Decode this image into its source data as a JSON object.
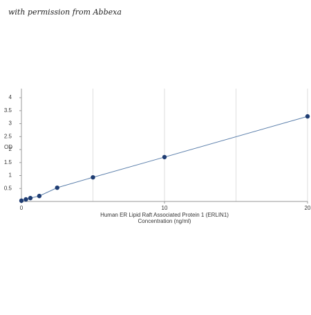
{
  "watermark": "with permission from Abbexa",
  "chart_data": {
    "type": "scatter",
    "xlabel": [
      "Human ER Lipid Raft Associated Protein 1 (ERLIN1)",
      "Concentration (ng/ml)"
    ],
    "ylabel": "OD",
    "x": [
      0,
      0.313,
      0.625,
      1.25,
      2.5,
      5,
      10,
      20
    ],
    "series": [
      {
        "color": "#1f3d73",
        "line_color": "#5b7fab",
        "values": [
          0.03,
          0.08,
          0.13,
          0.21,
          0.53,
          0.93,
          1.71,
          3.28
        ]
      }
    ],
    "xlim": [
      0,
      20
    ],
    "ylim": [
      0,
      4.35
    ],
    "xticks": [
      0,
      10,
      20
    ],
    "yticks": [
      0.5,
      1,
      1.5,
      2,
      2.5,
      3,
      3.5,
      4
    ],
    "xgrid": [
      5,
      10,
      15,
      20
    ],
    "grid": true
  }
}
